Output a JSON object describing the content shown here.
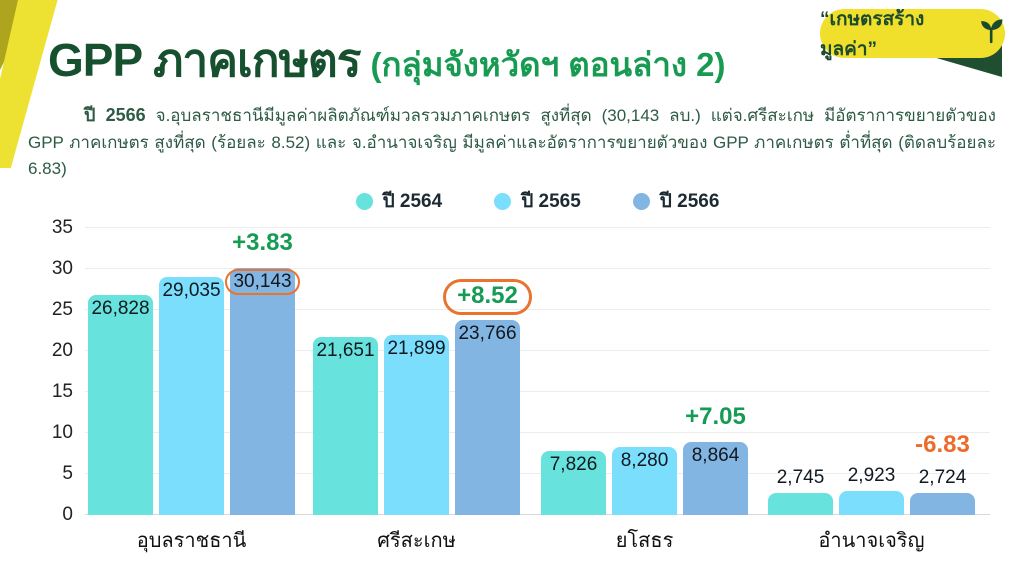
{
  "header": {
    "title": "GPP ภาคเกษตร",
    "subtitle": "(กลุ่มจังหวัดฯ ตอนล่าง 2)",
    "badge_text": "“เกษตรสร้างมูลค่า”"
  },
  "description": {
    "lead": "ปี 2566",
    "body": " จ.อุบลราชธานีมีมูลค่าผลิตภัณฑ์มวลรวมภาคเกษตร สูงที่สุด (30,143 ลบ.) แต่จ.ศรีสะเกษ มีอัตราการขยายตัวของ GPP ภาคเกษตร สูงที่สุด (ร้อยละ 8.52) และ จ.อำนาจเจริญ มีมูลค่าและอัตราการขยายตัวของ GPP ภาคเกษตร ต่ำที่สุด (ติดลบร้อยละ 6.83)"
  },
  "colors": {
    "title_dark_green": "#17502F",
    "subtitle_green": "#179A51",
    "annotation_green": "#169B54",
    "annotation_orange": "#ED6B2A",
    "ring_orange": "#E8742F",
    "badge_yellow": "#F0DF2B",
    "ribbon_yellow": "#EDE231",
    "ribbon_olive": "#AFA41D",
    "fold_green": "#1F4E31",
    "gridline": "#ECECEC"
  },
  "chart_data": {
    "type": "bar",
    "title": "GPP ภาคเกษตร (กลุ่มจังหวัดฯ ตอนล่าง 2)",
    "unit": "ลบ.",
    "categories": [
      "อุบลราชธานี",
      "ศรีสะเกษ",
      "ยโสธร",
      "อำนาจเจริญ"
    ],
    "series": [
      {
        "name": "ปี 2564",
        "color": "#68E2DC",
        "values": [
          26828,
          21651,
          7826,
          2745
        ]
      },
      {
        "name": "ปี 2565",
        "color": "#7BDEFC",
        "values": [
          29035,
          21899,
          8280,
          2923
        ]
      },
      {
        "name": "ปี 2566",
        "color": "#83B5E3",
        "values": [
          30143,
          23766,
          8864,
          2724
        ]
      }
    ],
    "value_labels": [
      [
        "26,828",
        "21,651",
        "7,826",
        "2,745"
      ],
      [
        "29,035",
        "21,899",
        "8,280",
        "2,923"
      ],
      [
        "30,143",
        "23,766",
        "8,864",
        "2,724"
      ]
    ],
    "growth_annotations": [
      {
        "category": "อุบลราชธานี",
        "text": "+3.83",
        "color": "green",
        "circled": false,
        "value_circled": true
      },
      {
        "category": "ศรีสะเกษ",
        "text": "+8.52",
        "color": "green",
        "circled": true,
        "value_circled": false
      },
      {
        "category": "ยโสธร",
        "text": "+7.05",
        "color": "green",
        "circled": false,
        "value_circled": false
      },
      {
        "category": "อำนาจเจริญ",
        "text": "-6.83",
        "color": "orange",
        "circled": false,
        "value_circled": false
      }
    ],
    "ylim": [
      0,
      35
    ],
    "yticks": [
      0,
      5,
      10,
      15,
      20,
      25,
      30,
      35
    ],
    "grid": true,
    "legend_position": "top"
  }
}
